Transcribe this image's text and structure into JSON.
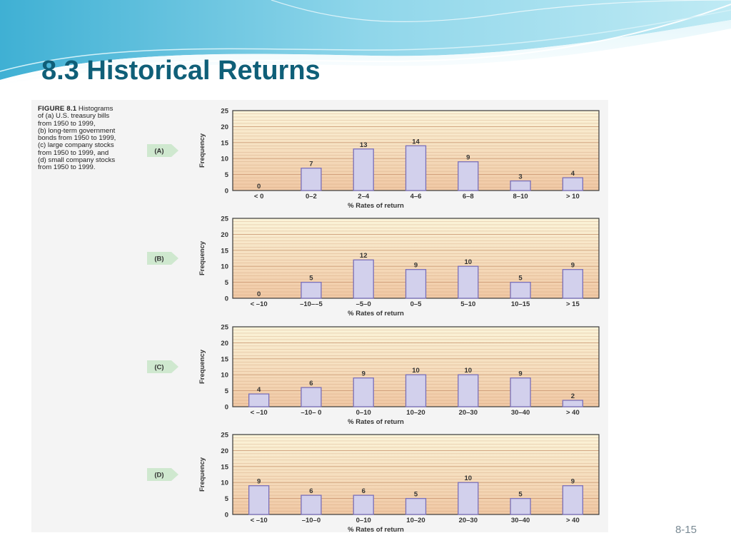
{
  "slide": {
    "title": "8.3 Historical Returns",
    "number": "8-15"
  },
  "figure": {
    "label": "FIGURE 8.1",
    "caption_lines": [
      "Histograms",
      "of (a) U.S. treasury bills",
      "from 1950 to 1999,",
      "(b) long-term government",
      "bonds from 1950 to 1999,",
      "(c) large company stocks",
      "from 1950 to 1999, and",
      "(d) small company stocks",
      "from 1950 to 1999."
    ]
  },
  "colors": {
    "title": "#0f5f78",
    "bar_fill": "#d2d0ec",
    "bar_stroke": "#7a6fb8",
    "plot_top": "#fbf4d9",
    "plot_bottom": "#f0c8a4",
    "grid_line": "#c8956e",
    "tag_fill": "#cfe8cf"
  },
  "chart_data": [
    {
      "type": "bar",
      "panel_label": "(A)",
      "categories": [
        "< 0",
        "0–2",
        "2–4",
        "4–6",
        "6–8",
        "8–10",
        "> 10"
      ],
      "values": [
        0,
        7,
        13,
        14,
        9,
        3,
        4
      ],
      "xlabel": "% Rates of return",
      "ylabel": "Frequency",
      "ylim": [
        0,
        25
      ],
      "yticks": [
        0,
        5,
        10,
        15,
        20,
        25
      ],
      "grid": true
    },
    {
      "type": "bar",
      "panel_label": "(B)",
      "categories": [
        "< –10",
        "–10––5",
        "–5–0",
        "0–5",
        "5–10",
        "10–15",
        "> 15"
      ],
      "values": [
        0,
        5,
        12,
        9,
        10,
        5,
        9
      ],
      "xlabel": "% Rates of return",
      "ylabel": "Frequency",
      "ylim": [
        0,
        25
      ],
      "yticks": [
        0,
        5,
        10,
        15,
        20,
        25
      ],
      "grid": true
    },
    {
      "type": "bar",
      "panel_label": "(C)",
      "categories": [
        "< –10",
        "–10– 0",
        "0–10",
        "10–20",
        "20–30",
        "30–40",
        "> 40"
      ],
      "values": [
        4,
        6,
        9,
        10,
        10,
        9,
        2
      ],
      "xlabel": "% Rates of return",
      "ylabel": "Frequency",
      "ylim": [
        0,
        25
      ],
      "yticks": [
        0,
        5,
        10,
        15,
        20,
        25
      ],
      "grid": true
    },
    {
      "type": "bar",
      "panel_label": "(D)",
      "categories": [
        "< –10",
        "–10–0",
        "0–10",
        "10–20",
        "20–30",
        "30–40",
        "> 40"
      ],
      "values": [
        9,
        6,
        6,
        5,
        10,
        5,
        9
      ],
      "xlabel": "% Rates of return",
      "ylabel": "Frequency",
      "ylim": [
        0,
        25
      ],
      "yticks": [
        0,
        5,
        10,
        15,
        20,
        25
      ],
      "grid": true
    }
  ]
}
